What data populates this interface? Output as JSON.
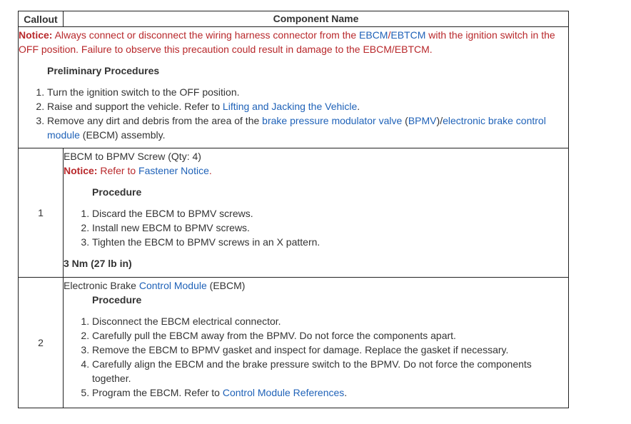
{
  "header": {
    "callout": "Callout",
    "component": "Component Name"
  },
  "intro": {
    "notice_label": "Notice:",
    "notice_1": " Always connect or disconnect the wiring harness connector from the ",
    "ebcm": "EBCM",
    "slash": "/",
    "ebtcm": "EBTCM",
    "notice_2": " with the ignition switch in the OFF position. Failure to observe this precaution could result in damage to the EBCM/EBTCM.",
    "heading": "Preliminary Procedures",
    "step1": "Turn the ignition switch to the OFF position.",
    "step2_a": "Raise and support the vehicle. Refer to ",
    "step2_link": "Lifting and Jacking the Vehicle",
    "step2_b": ".",
    "step3_a": "Remove any dirt and debris from the area of the ",
    "step3_link1": "brake pressure modulator valve",
    "step3_b": " (",
    "step3_link2": "BPMV",
    "step3_c": ")/",
    "step3_link3": "electronic brake control module",
    "step3_d": " (EBCM) assembly."
  },
  "rows": [
    {
      "callout": "1",
      "title": "EBCM to BPMV Screw (Qty: 4)",
      "notice_label": "Notice:",
      "notice_text": " Refer to ",
      "notice_link": "Fastener Notice",
      "notice_end": ".",
      "heading": "Procedure",
      "steps": [
        "Discard the EBCM to BPMV screws.",
        "Install new EBCM to BPMV screws.",
        "Tighten the EBCM to BPMV screws in an X pattern."
      ],
      "torque": "3 Nm (27 lb in)"
    },
    {
      "callout": "2",
      "title_a": "Electronic Brake ",
      "title_link": "Control Module",
      "title_b": " (EBCM)",
      "heading": "Procedure",
      "steps": [
        "Disconnect the EBCM electrical connector.",
        "Carefully pull the EBCM away from the BPMV. Do not force the components apart.",
        "Remove the EBCM to BPMV gasket and inspect for damage. Replace the gasket if necessary.",
        "Carefully align the EBCM and the brake pressure switch to the BPMV. Do not force the components together."
      ],
      "step5_a": "Program the EBCM. Refer to ",
      "step5_link": "Control Module References",
      "step5_b": "."
    }
  ]
}
